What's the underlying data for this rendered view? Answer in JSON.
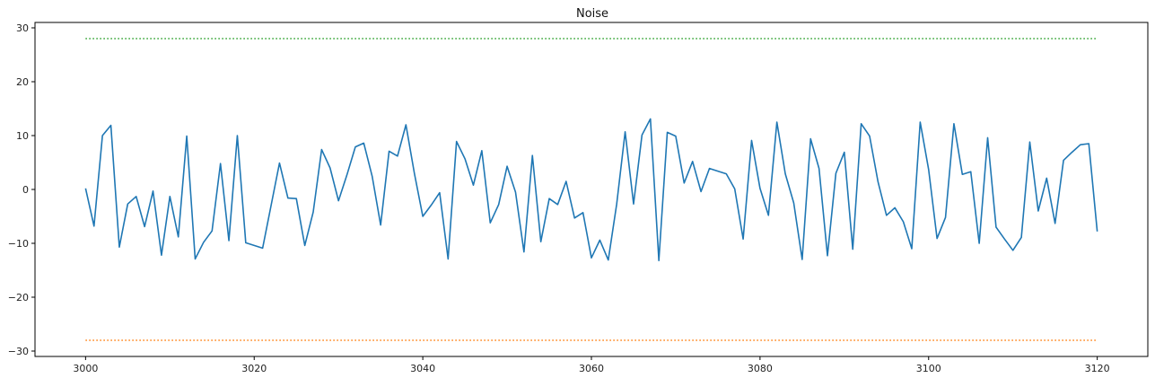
{
  "chart_data": {
    "type": "line",
    "title": "Noise",
    "xlabel": "",
    "ylabel": "",
    "xlim": [
      2994,
      3126
    ],
    "ylim": [
      -31,
      31
    ],
    "xticks": [
      3000,
      3020,
      3040,
      3060,
      3080,
      3100,
      3120
    ],
    "yticks": [
      30,
      20,
      10,
      0,
      -10,
      -20,
      -30
    ],
    "grid": false,
    "legend": "none",
    "series": [
      {
        "color": "#1f77b4",
        "style": "solid",
        "x": [
          3000,
          3001,
          3002,
          3003,
          3004,
          3005,
          3006,
          3007,
          3008,
          3009,
          3010,
          3011,
          3012,
          3013,
          3014,
          3015,
          3016,
          3017,
          3018,
          3019,
          3020,
          3021,
          3022,
          3023,
          3024,
          3025,
          3026,
          3027,
          3028,
          3029,
          3030,
          3031,
          3032,
          3033,
          3034,
          3035,
          3036,
          3037,
          3038,
          3039,
          3040,
          3041,
          3042,
          3043,
          3044,
          3045,
          3046,
          3047,
          3048,
          3049,
          3050,
          3051,
          3052,
          3053,
          3054,
          3055,
          3056,
          3057,
          3058,
          3059,
          3060,
          3061,
          3062,
          3063,
          3064,
          3065,
          3066,
          3067,
          3068,
          3069,
          3070,
          3071,
          3072,
          3073,
          3074,
          3075,
          3076,
          3077,
          3078,
          3079,
          3080,
          3081,
          3082,
          3083,
          3084,
          3085,
          3086,
          3087,
          3088,
          3089,
          3090,
          3091,
          3092,
          3093,
          3094,
          3095,
          3096,
          3097,
          3098,
          3099,
          3100,
          3101,
          3102,
          3103,
          3104,
          3105,
          3106,
          3107,
          3108,
          3109,
          3110,
          3111,
          3112,
          3113,
          3114,
          3115,
          3116,
          3117,
          3118,
          3119,
          3120
        ],
        "values": [
          0.2,
          -6.8,
          10.0,
          11.9,
          -10.7,
          -2.7,
          -1.3,
          -6.9,
          -0.3,
          -12.2,
          -1.3,
          -8.8,
          9.9,
          -12.9,
          -9.8,
          -7.7,
          4.8,
          -9.5,
          10.0,
          -9.9,
          -10.4,
          -10.9,
          -3.0,
          4.9,
          -1.6,
          -1.7,
          -10.4,
          -4.2,
          7.4,
          4.0,
          -2.1,
          2.7,
          7.9,
          8.6,
          2.4,
          -6.6,
          7.1,
          6.2,
          12.0,
          3.0,
          -5.0,
          -2.9,
          -0.6,
          -12.9,
          8.9,
          5.7,
          0.8,
          7.2,
          -6.2,
          -2.8,
          4.3,
          -0.5,
          -11.6,
          6.3,
          -9.7,
          -1.7,
          -2.8,
          1.5,
          -5.3,
          -4.3,
          -12.7,
          -9.4,
          -13.1,
          -2.7,
          10.7,
          -2.7,
          10.1,
          13.1,
          -13.2,
          10.6,
          9.9,
          1.2,
          5.2,
          -0.4,
          3.9,
          3.4,
          2.9,
          0.1,
          -9.2,
          9.1,
          0.2,
          -4.8,
          12.5,
          2.9,
          -2.5,
          -13.0,
          9.4,
          3.9,
          -12.3,
          3.0,
          6.9,
          -11.1,
          12.2,
          9.9,
          1.4,
          -4.8,
          -3.4,
          -6.0,
          -11.0,
          12.5,
          3.7,
          -9.1,
          -5.2,
          12.2,
          2.8,
          3.3,
          -10.0,
          9.6,
          -7.0,
          -9.2,
          -11.3,
          -8.9,
          8.8,
          -4.0,
          2.1,
          -6.3,
          5.4,
          6.9,
          8.3,
          8.5,
          -7.8
        ]
      },
      {
        "color": "#2ca02c",
        "style": "dotted",
        "x": [
          3000,
          3120
        ],
        "values": [
          28,
          28
        ]
      },
      {
        "color": "#ff7f0e",
        "style": "dotted",
        "x": [
          3000,
          3120
        ],
        "values": [
          -28,
          -28
        ]
      }
    ]
  }
}
